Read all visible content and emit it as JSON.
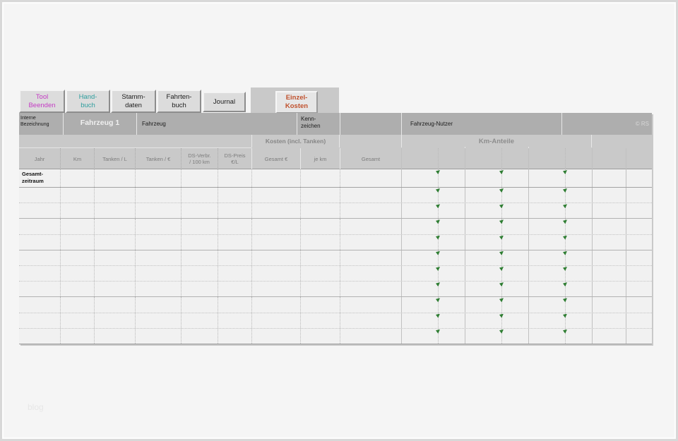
{
  "watermark": "blog",
  "toolbar": {
    "buttons": [
      {
        "id": "tool-beenden",
        "line1": "Tool",
        "line2": "Beenden",
        "color": "#c43bc4"
      },
      {
        "id": "handbuch",
        "line1": "Hand-",
        "line2": "buch",
        "color": "#2f9e9e"
      },
      {
        "id": "stammdaten",
        "line1": "Stamm-",
        "line2": "daten",
        "color": "#1c1c1c"
      },
      {
        "id": "fahrtenbuch",
        "line1": "Fahrten-",
        "line2": "buch",
        "color": "#1c1c1c"
      },
      {
        "id": "journal",
        "line1": "Journal",
        "line2": "",
        "color": "#1c1c1c"
      },
      {
        "id": "einzelkosten",
        "line1": "Einzel-",
        "line2": "Kosten",
        "color": "#c0512d",
        "active": true
      }
    ]
  },
  "header": {
    "interne": {
      "line1": "Interne",
      "line2": "Bezeichnung"
    },
    "vehicle_value": "Fahrzeug 1",
    "fahrzeug_label": "Fahrzeug",
    "kenn": {
      "line1": "Kenn-",
      "line2": "zeichen"
    },
    "nutzer_label": "Fahrzeug-Nutzer",
    "copyright": "© RS"
  },
  "columns": {
    "group_kosten": "Kosten (incl. Tanken)",
    "group_km": "Km-Anteile",
    "labels": [
      {
        "l1": "Jahr",
        "l2": ""
      },
      {
        "l1": "Km",
        "l2": ""
      },
      {
        "l1": "Tanken / L",
        "l2": ""
      },
      {
        "l1": "Tanken / €",
        "l2": ""
      },
      {
        "l1": "DS-Verbr.",
        "l2": "/ 100 km"
      },
      {
        "l1": "DS-Preis",
        "l2": "€/L"
      },
      {
        "l1": "Gesamt €",
        "l2": ""
      },
      {
        "l1": "je km",
        "l2": ""
      },
      {
        "l1": "Gesamt",
        "l2": ""
      }
    ]
  },
  "table": {
    "first_row": {
      "line1": "Gesamt-",
      "line2": "zeitraum"
    },
    "empty_row_count": 10,
    "marker_flag_color": "#2e7d32",
    "cell_values": []
  },
  "colors": {
    "header_gray": "#aeaeae",
    "band_gray": "#c9c9c9",
    "button_gray": "#dcdcdc",
    "sheet_bg": "#f1f1f1"
  }
}
